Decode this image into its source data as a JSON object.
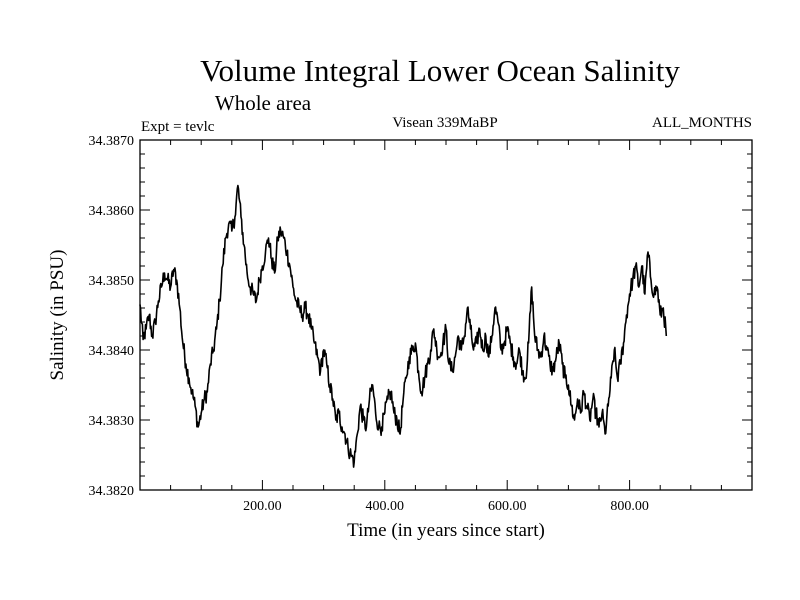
{
  "chart_data": {
    "type": "line",
    "title": "Volume Integral Lower Ocean Salinity",
    "subtitle": "Whole area",
    "header_left": "Expt = tevlc",
    "header_center": "Visean 339MaBP",
    "header_right": "ALL_MONTHS",
    "xlabel": "Time (in years since start)",
    "ylabel": "Salinity (in PSU)",
    "xlim": [
      0,
      1000
    ],
    "ylim": [
      34.382,
      34.387
    ],
    "x_ticks": [
      200,
      400,
      600,
      800
    ],
    "x_tick_labels": [
      "200.00",
      "400.00",
      "600.00",
      "800.00"
    ],
    "x_minor_step": 50,
    "y_ticks": [
      34.382,
      34.383,
      34.384,
      34.385,
      34.386,
      34.387
    ],
    "y_tick_labels": [
      "34.3820",
      "34.3830",
      "34.3840",
      "34.3850",
      "34.3860",
      "34.3870"
    ],
    "y_minor_step": 0.0002,
    "grid": false,
    "series": [
      {
        "name": "salinity",
        "color": "#000000",
        "points": [
          [
            0,
            34.38465
          ],
          [
            5,
            34.38415
          ],
          [
            10,
            34.3843
          ],
          [
            15,
            34.3845
          ],
          [
            20,
            34.3842
          ],
          [
            25,
            34.3844
          ],
          [
            30,
            34.3847
          ],
          [
            35,
            34.3849
          ],
          [
            40,
            34.3851
          ],
          [
            45,
            34.385
          ],
          [
            50,
            34.3849
          ],
          [
            55,
            34.38515
          ],
          [
            60,
            34.385
          ],
          [
            65,
            34.3846
          ],
          [
            70,
            34.3841
          ],
          [
            75,
            34.3838
          ],
          [
            80,
            34.3836
          ],
          [
            85,
            34.3834
          ],
          [
            90,
            34.3832
          ],
          [
            95,
            34.3829
          ],
          [
            100,
            34.3831
          ],
          [
            105,
            34.3833
          ],
          [
            110,
            34.3834
          ],
          [
            115,
            34.3838
          ],
          [
            120,
            34.384
          ],
          [
            125,
            34.3843
          ],
          [
            130,
            34.3847
          ],
          [
            135,
            34.3852
          ],
          [
            140,
            34.3856
          ],
          [
            145,
            34.3858
          ],
          [
            150,
            34.3857
          ],
          [
            155,
            34.3859
          ],
          [
            160,
            34.38635
          ],
          [
            165,
            34.3859
          ],
          [
            170,
            34.3855
          ],
          [
            175,
            34.3851
          ],
          [
            180,
            34.3849
          ],
          [
            185,
            34.3848
          ],
          [
            190,
            34.3847
          ],
          [
            195,
            34.385
          ],
          [
            200,
            34.3852
          ],
          [
            205,
            34.3854
          ],
          [
            210,
            34.3856
          ],
          [
            215,
            34.3853
          ],
          [
            220,
            34.3851
          ],
          [
            225,
            34.3856
          ],
          [
            230,
            34.3857
          ],
          [
            235,
            34.3856
          ],
          [
            240,
            34.3854
          ],
          [
            245,
            34.3852
          ],
          [
            250,
            34.3849
          ],
          [
            255,
            34.3847
          ],
          [
            260,
            34.3846
          ],
          [
            265,
            34.3845
          ],
          [
            270,
            34.3846
          ],
          [
            275,
            34.3845
          ],
          [
            280,
            34.3843
          ],
          [
            285,
            34.3841
          ],
          [
            290,
            34.3839
          ],
          [
            295,
            34.3837
          ],
          [
            300,
            34.384
          ],
          [
            305,
            34.3838
          ],
          [
            310,
            34.3835
          ],
          [
            315,
            34.3833
          ],
          [
            320,
            34.383
          ],
          [
            325,
            34.3831
          ],
          [
            330,
            34.3829
          ],
          [
            335,
            34.3828
          ],
          [
            340,
            34.3826
          ],
          [
            345,
            34.3825
          ],
          [
            350,
            34.3824
          ],
          [
            355,
            34.3828
          ],
          [
            360,
            34.3832
          ],
          [
            365,
            34.383
          ],
          [
            370,
            34.3829
          ],
          [
            375,
            34.3833
          ],
          [
            380,
            34.3835
          ],
          [
            385,
            34.3831
          ],
          [
            390,
            34.3829
          ],
          [
            395,
            34.3829
          ],
          [
            400,
            34.3831
          ],
          [
            405,
            34.3833
          ],
          [
            410,
            34.3834
          ],
          [
            415,
            34.3831
          ],
          [
            420,
            34.383
          ],
          [
            425,
            34.3828
          ],
          [
            430,
            34.3833
          ],
          [
            435,
            34.3836
          ],
          [
            440,
            34.3839
          ],
          [
            445,
            34.384
          ],
          [
            450,
            34.3841
          ],
          [
            455,
            34.3837
          ],
          [
            460,
            34.3834
          ],
          [
            465,
            34.3836
          ],
          [
            470,
            34.3838
          ],
          [
            475,
            34.384
          ],
          [
            480,
            34.3843
          ],
          [
            485,
            34.384
          ],
          [
            490,
            34.3839
          ],
          [
            495,
            34.3841
          ],
          [
            500,
            34.3843
          ],
          [
            505,
            34.3838
          ],
          [
            510,
            34.3837
          ],
          [
            515,
            34.3839
          ],
          [
            520,
            34.3842
          ],
          [
            525,
            34.384
          ],
          [
            530,
            34.3842
          ],
          [
            535,
            34.3846
          ],
          [
            540,
            34.3843
          ],
          [
            545,
            34.384
          ],
          [
            550,
            34.3841
          ],
          [
            555,
            34.3843
          ],
          [
            560,
            34.384
          ],
          [
            565,
            34.3842
          ],
          [
            570,
            34.3839
          ],
          [
            575,
            34.3842
          ],
          [
            580,
            34.3846
          ],
          [
            585,
            34.3844
          ],
          [
            590,
            34.384
          ],
          [
            595,
            34.3841
          ],
          [
            600,
            34.3843
          ],
          [
            605,
            34.3841
          ],
          [
            610,
            34.3839
          ],
          [
            615,
            34.3838
          ],
          [
            620,
            34.384
          ],
          [
            625,
            34.3837
          ],
          [
            630,
            34.3836
          ],
          [
            635,
            34.3841
          ],
          [
            640,
            34.3849
          ],
          [
            645,
            34.3842
          ],
          [
            650,
            34.384
          ],
          [
            655,
            34.3839
          ],
          [
            660,
            34.3842
          ],
          [
            665,
            34.384
          ],
          [
            670,
            34.3838
          ],
          [
            675,
            34.3837
          ],
          [
            680,
            34.3839
          ],
          [
            685,
            34.3841
          ],
          [
            690,
            34.3838
          ],
          [
            695,
            34.3836
          ],
          [
            700,
            34.3835
          ],
          [
            705,
            34.3832
          ],
          [
            710,
            34.383
          ],
          [
            715,
            34.3833
          ],
          [
            720,
            34.3831
          ],
          [
            725,
            34.3834
          ],
          [
            730,
            34.3832
          ],
          [
            735,
            34.383
          ],
          [
            740,
            34.3833
          ],
          [
            745,
            34.3831
          ],
          [
            750,
            34.3829
          ],
          [
            755,
            34.3831
          ],
          [
            760,
            34.3828
          ],
          [
            765,
            34.3832
          ],
          [
            770,
            34.3836
          ],
          [
            775,
            34.384
          ],
          [
            780,
            34.3836
          ],
          [
            785,
            34.3838
          ],
          [
            790,
            34.3841
          ],
          [
            795,
            34.3845
          ],
          [
            800,
            34.3848
          ],
          [
            805,
            34.385
          ],
          [
            810,
            34.3852
          ],
          [
            815,
            34.3849
          ],
          [
            820,
            34.3852
          ],
          [
            825,
            34.3848
          ],
          [
            830,
            34.3854
          ],
          [
            835,
            34.385
          ],
          [
            840,
            34.3848
          ],
          [
            845,
            34.3849
          ],
          [
            850,
            34.3845
          ],
          [
            855,
            34.3846
          ],
          [
            860,
            34.3842
          ]
        ]
      }
    ]
  }
}
